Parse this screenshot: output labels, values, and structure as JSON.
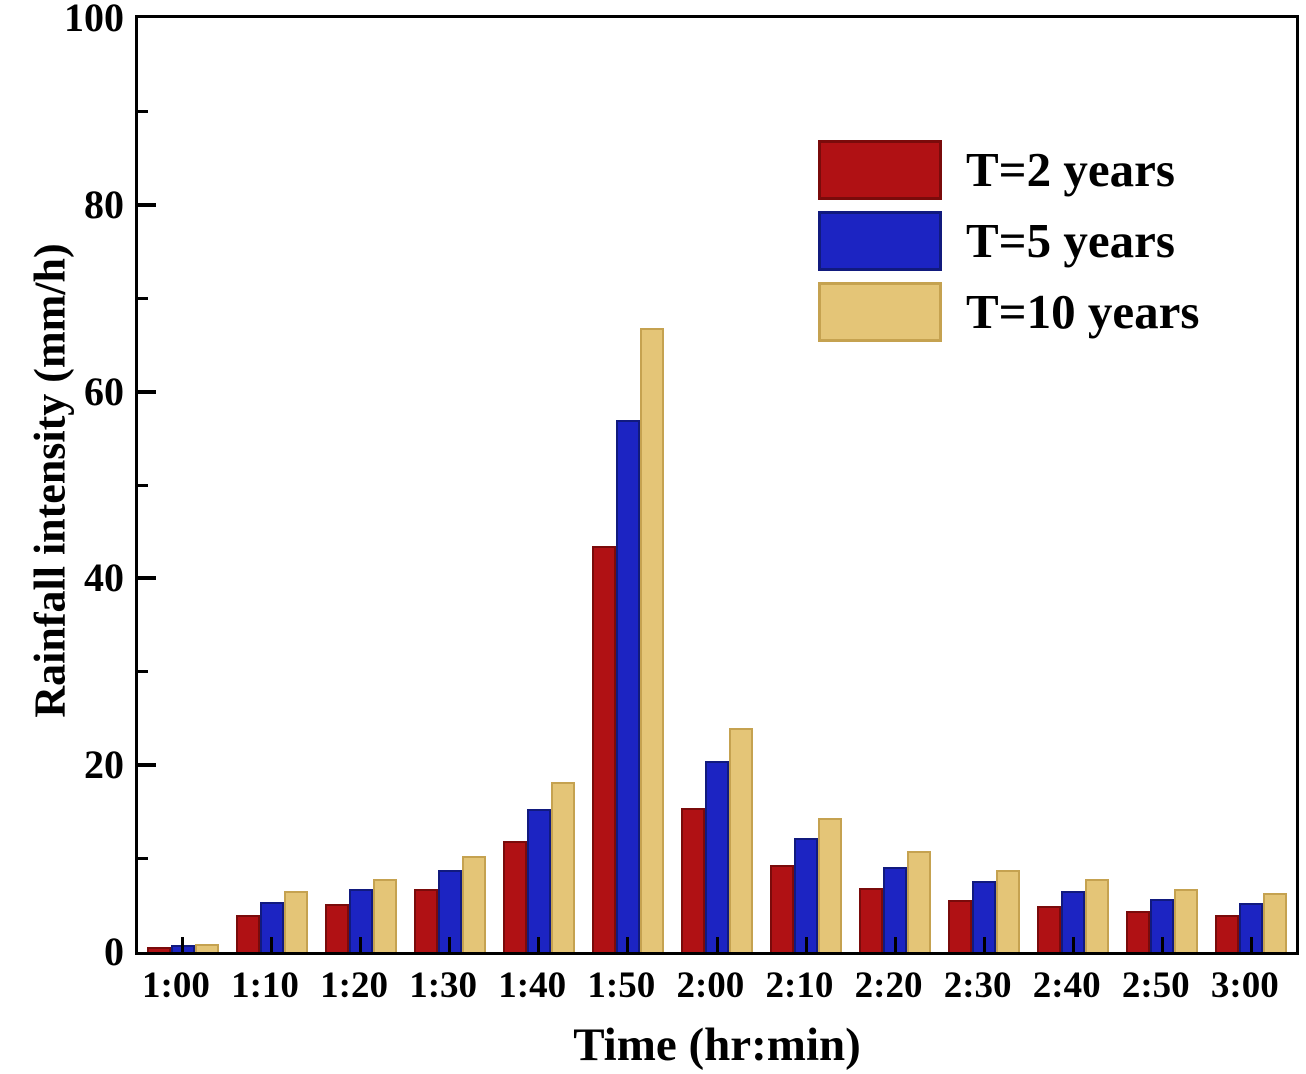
{
  "chart_data": {
    "type": "bar",
    "title": "",
    "xlabel": "Time (hr:min)",
    "ylabel": "Rainfall intensity (mm/h)",
    "ylim": [
      0,
      100
    ],
    "y_major_ticks": [
      0,
      20,
      40,
      60,
      80,
      100
    ],
    "y_minor_ticks": [
      10,
      30,
      50,
      70,
      90
    ],
    "grid": false,
    "legend_position": "upper-right-inside",
    "categories": [
      "1:00",
      "1:10",
      "1:20",
      "1:30",
      "1:40",
      "1:50",
      "2:00",
      "2:10",
      "2:20",
      "2:30",
      "2:40",
      "2:50",
      "3:00"
    ],
    "categories_display": [
      {
        "hr": "1:",
        "min": "00"
      },
      {
        "hr": "1:",
        "min": "10"
      },
      {
        "hr": "1:",
        "min": "20"
      },
      {
        "hr": "1:",
        "min": "30"
      },
      {
        "hr": "1:",
        "min": "40"
      },
      {
        "hr": "1:",
        "min": "50"
      },
      {
        "hr": "2:",
        "min": "00"
      },
      {
        "hr": "2:",
        "min": "10"
      },
      {
        "hr": "2:",
        "min": "20"
      },
      {
        "hr": "2:",
        "min": "30"
      },
      {
        "hr": "2:",
        "min": "40"
      },
      {
        "hr": "2:",
        "min": "50"
      },
      {
        "hr": "3:",
        "min": "00"
      }
    ],
    "series": [
      {
        "name": "T=2 years",
        "color": "#b01114",
        "border_color": "#7a0b0b",
        "values": [
          0.5,
          4.0,
          5.1,
          6.7,
          11.9,
          43.5,
          15.4,
          9.3,
          6.9,
          5.6,
          4.9,
          4.4,
          4.0
        ]
      },
      {
        "name": "T=5 years",
        "color": "#1c24c2",
        "border_color": "#111a7e",
        "values": [
          0.7,
          5.4,
          6.7,
          8.8,
          15.3,
          57.0,
          20.4,
          12.2,
          9.1,
          7.6,
          6.5,
          5.7,
          5.2
        ]
      },
      {
        "name": "T=10 years",
        "color": "#e4c577",
        "border_color": "#c5a250",
        "values": [
          0.9,
          6.5,
          7.8,
          10.3,
          18.2,
          66.8,
          24.0,
          14.3,
          10.8,
          8.8,
          7.8,
          6.8,
          6.3
        ]
      }
    ]
  }
}
